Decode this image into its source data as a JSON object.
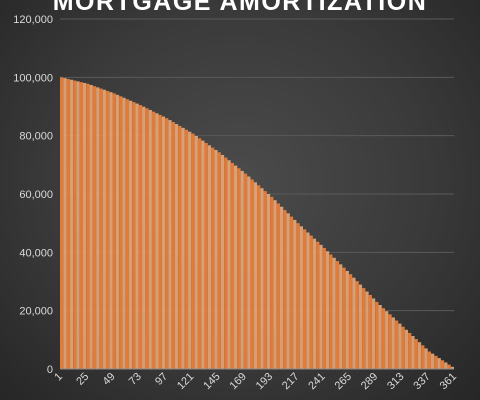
{
  "chart_data": {
    "type": "bar",
    "title": "MORTGAGE AMORTIZATION",
    "xlabel": "",
    "ylabel": "",
    "ylim": [
      0,
      120000
    ],
    "y_ticks": [
      "0",
      "20,000",
      "40,000",
      "60,000",
      "80,000",
      "100,000",
      "120,000"
    ],
    "x_ticks": [
      "1",
      "25",
      "49",
      "73",
      "97",
      "121",
      "145",
      "169",
      "193",
      "217",
      "241",
      "265",
      "289",
      "313",
      "337",
      "361"
    ],
    "x_range": [
      1,
      361
    ],
    "grid": true,
    "legend": "none",
    "series": [
      {
        "x": [
          1,
          25,
          49,
          73,
          97,
          121,
          145,
          169,
          193,
          217,
          241,
          265,
          289,
          313,
          337,
          361
        ],
        "values": [
          100000,
          97800,
          94500,
          90500,
          86000,
          80700,
          74300,
          67000,
          59000,
          50000,
          41500,
          32500,
          23000,
          14500,
          6000,
          0
        ]
      }
    ],
    "colors": {
      "bar_fill": "#e07b39",
      "bar_stripe": "#f3b07e",
      "background": "#3c3c3c",
      "gridline": "#5a5a5a",
      "text": "#d9d9d9",
      "title": "#ffffff"
    }
  }
}
